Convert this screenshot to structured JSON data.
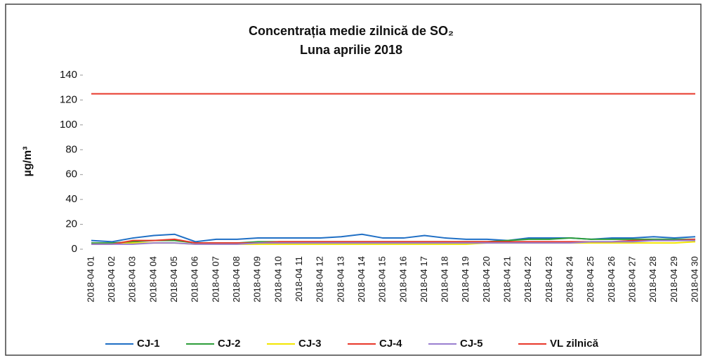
{
  "chart_data": {
    "type": "line",
    "title": "Concentrația medie zilnică de SO₂",
    "subtitle": "Luna aprilie 2018",
    "y_label": "µg/m³",
    "categories": [
      "2018-04 01",
      "2018-04 02",
      "2018-04 03",
      "2018-04 04",
      "2018-04 05",
      "2018-04 06",
      "2018-04 07",
      "2018-04 08",
      "2018-04 09",
      "2018-04 10",
      "2018-04 11",
      "2018-04 12",
      "2018-04 13",
      "2018-04 14",
      "2018-04 15",
      "2018-04 16",
      "2018-04 17",
      "2018-04 18",
      "2018-04 19",
      "2018-04 20",
      "2018-04 21",
      "2018-04 22",
      "2018-04 23",
      "2018-04 24",
      "2018-04 25",
      "2018-04 26",
      "2018-04 27",
      "2018-04 28",
      "2018-04 29",
      "2018-04 30"
    ],
    "series": [
      {
        "name": "CJ-1",
        "color": "#1f6fc5",
        "values": [
          7,
          6,
          9,
          11,
          12,
          6,
          8,
          8,
          9,
          9,
          9,
          9,
          10,
          12,
          9,
          9,
          11,
          9,
          8,
          8,
          7,
          9,
          9,
          9,
          8,
          9,
          9,
          10,
          9,
          10
        ]
      },
      {
        "name": "CJ-2",
        "color": "#2e9e3a",
        "values": [
          5,
          5,
          6,
          7,
          7,
          5,
          5,
          5,
          6,
          6,
          6,
          6,
          6,
          6,
          6,
          6,
          6,
          6,
          6,
          6,
          7,
          8,
          8,
          9,
          8,
          8,
          8,
          8,
          8,
          8
        ]
      },
      {
        "name": "CJ-3",
        "color": "#f2e600",
        "values": [
          4,
          4,
          5,
          5,
          5,
          4,
          4,
          4,
          4,
          4,
          4,
          4,
          4,
          4,
          4,
          4,
          4,
          4,
          4,
          5,
          5,
          5,
          5,
          5,
          5,
          5,
          5,
          5,
          5,
          6
        ]
      },
      {
        "name": "CJ-4",
        "color": "#e8382a",
        "values": [
          4,
          4,
          7,
          7,
          8,
          5,
          5,
          5,
          5,
          6,
          6,
          6,
          6,
          6,
          6,
          6,
          6,
          6,
          6,
          6,
          6,
          6,
          6,
          6,
          6,
          6,
          7,
          7,
          7,
          8
        ]
      },
      {
        "name": "CJ-5",
        "color": "#9a7fd0",
        "values": [
          4,
          4,
          4,
          5,
          5,
          4,
          4,
          4,
          5,
          5,
          5,
          5,
          5,
          5,
          5,
          5,
          5,
          5,
          5,
          5,
          5,
          5,
          5,
          5,
          6,
          6,
          6,
          7,
          7,
          7
        ]
      },
      {
        "name": "VL zilnică",
        "color": "#e8382a",
        "values": [
          125,
          125,
          125,
          125,
          125,
          125,
          125,
          125,
          125,
          125,
          125,
          125,
          125,
          125,
          125,
          125,
          125,
          125,
          125,
          125,
          125,
          125,
          125,
          125,
          125,
          125,
          125,
          125,
          125,
          125
        ]
      }
    ],
    "ylim": [
      0,
      140
    ],
    "yticks": [
      0,
      20,
      40,
      60,
      80,
      100,
      120,
      140
    ]
  }
}
